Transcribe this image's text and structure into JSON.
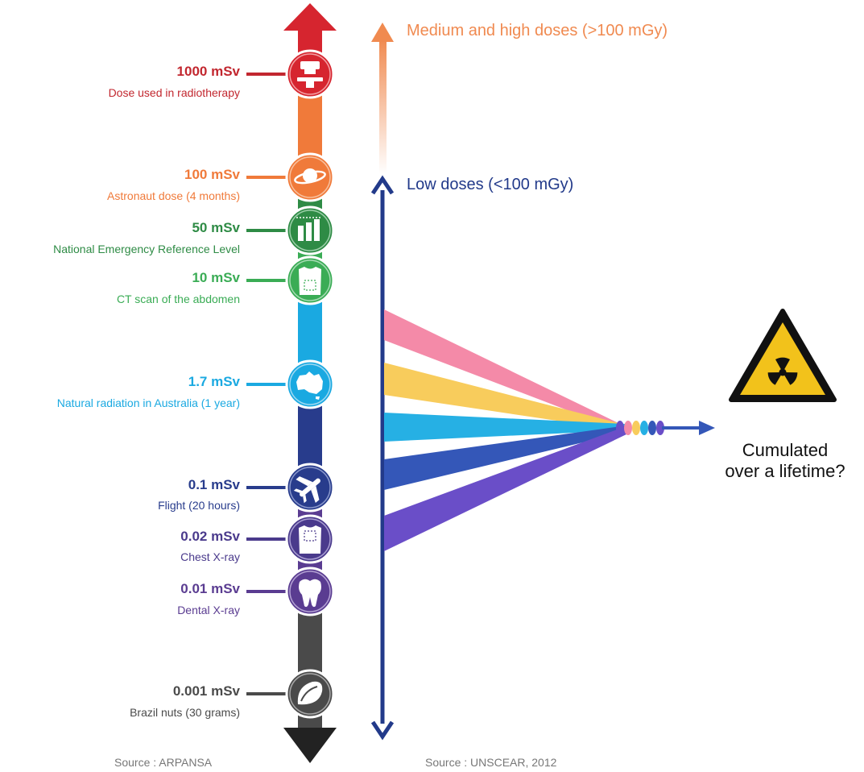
{
  "colors": {
    "red": "#d6252f",
    "orange": "#f07a3a",
    "green_dark": "#2e8b45",
    "green": "#3aac55",
    "cyan": "#1aa9e1",
    "navy": "#283c8c",
    "purple": "#5a3c91",
    "gray": "#4a4a4a",
    "black": "#222222",
    "low_dose_blue": "#223a8a",
    "high_dose_orange": "#f08a50",
    "ribbon_pink": "#f48aa8",
    "ribbon_yellow": "#f8cc5c",
    "ribbon_cyan": "#26b0e4",
    "ribbon_blue": "#3457b8",
    "ribbon_violet": "#6a4ec8",
    "hazard_yellow": "#f2c21b"
  },
  "doses": [
    {
      "value": "1000 mSv",
      "label": "Dose used in radiotherapy",
      "color": "#c2272f",
      "icon": "radiotherapy-machine-icon"
    },
    {
      "value": "100 mSv",
      "label": "Astronaut dose (4 months)",
      "color": "#f07a3a",
      "icon": "planet-icon"
    },
    {
      "value": "50 mSv",
      "label": "National Emergency Reference Level",
      "color": "#2e8b45",
      "icon": "bar-chart-icon"
    },
    {
      "value": "10 mSv",
      "label": "CT scan of the abdomen",
      "color": "#3aac55",
      "icon": "torso-icon"
    },
    {
      "value": "1.7 mSv",
      "label": "Natural radiation in Australia (1 year)",
      "color": "#1aa9e1",
      "icon": "australia-map-icon"
    },
    {
      "value": "0.1 mSv",
      "label": "Flight (20 hours)",
      "color": "#283c8c",
      "icon": "airplane-icon"
    },
    {
      "value": "0.02 mSv",
      "label": "Chest X-ray",
      "color": "#4a3a8c",
      "icon": "chest-xray-icon"
    },
    {
      "value": "0.01 mSv",
      "label": "Dental X-ray",
      "color": "#5a3c91",
      "icon": "tooth-icon"
    },
    {
      "value": "0.001 mSv",
      "label": "Brazil nuts (30 grams)",
      "color": "#4a4a4a",
      "icon": "brazil-nut-icon"
    }
  ],
  "bands": {
    "high": "Medium and high doses (>100 mGy)",
    "low": "Low doses (<100 mGy)"
  },
  "cumulated": {
    "line1": "Cumulated",
    "line2": "over a lifetime?"
  },
  "sources": {
    "left": "Source : ARPANSA",
    "right": "Source : UNSCEAR, 2012"
  }
}
